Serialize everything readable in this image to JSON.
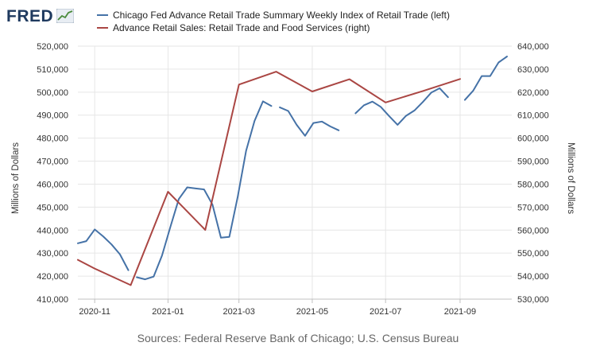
{
  "logo": {
    "text": "FRED",
    "icon": "trend-line-icon"
  },
  "source_text": "Sources: Federal Reserve Bank of Chicago; U.S. Census Bureau",
  "chart_data": {
    "type": "line",
    "title": "",
    "x_type": "date",
    "xlim": [
      "2020-10-18",
      "2021-10-14"
    ],
    "x_ticks": [
      "2020-11-01",
      "2021-01-01",
      "2021-03-01",
      "2021-05-01",
      "2021-07-01",
      "2021-09-01"
    ],
    "x_tick_labels": [
      "2020-11",
      "2021-01",
      "2021-03",
      "2021-05",
      "2021-07",
      "2021-09"
    ],
    "left_axis": {
      "label": "Millions of Dollars",
      "ylim": [
        410000,
        520000
      ],
      "ticks": [
        410000,
        420000,
        430000,
        440000,
        450000,
        460000,
        470000,
        480000,
        490000,
        500000,
        510000,
        520000
      ],
      "tick_labels": [
        "410,000",
        "420,000",
        "430,000",
        "440,000",
        "450,000",
        "460,000",
        "470,000",
        "480,000",
        "490,000",
        "500,000",
        "510,000",
        "520,000"
      ]
    },
    "right_axis": {
      "label": "Millions of Dollars",
      "ylim": [
        530000,
        640000
      ],
      "ticks": [
        530000,
        540000,
        550000,
        560000,
        570000,
        580000,
        590000,
        600000,
        610000,
        620000,
        630000,
        640000
      ],
      "tick_labels": [
        "530,000",
        "540,000",
        "550,000",
        "560,000",
        "570,000",
        "580,000",
        "590,000",
        "600,000",
        "610,000",
        "620,000",
        "630,000",
        "640,000"
      ]
    },
    "grid": true,
    "legend_position": "top",
    "series": [
      {
        "name": "Chicago Fed Advance Retail Trade Summary Weekly Index of Retail Trade (left)",
        "axis": "left",
        "color": "#4572a7",
        "points": [
          [
            "2020-10-18",
            434300
          ],
          [
            "2020-10-25",
            435200
          ],
          [
            "2020-11-01",
            440300
          ],
          [
            "2020-11-08",
            437300
          ],
          [
            "2020-11-15",
            433800
          ],
          [
            "2020-11-22",
            429500
          ],
          [
            "2020-11-29",
            422600
          ],
          null,
          [
            "2020-12-06",
            419500
          ],
          [
            "2020-12-13",
            418600
          ],
          [
            "2020-12-20",
            419800
          ],
          [
            "2020-12-27",
            429000
          ],
          [
            "2021-01-03",
            441500
          ],
          [
            "2021-01-10",
            453500
          ],
          [
            "2021-01-17",
            458600
          ],
          [
            "2021-01-24",
            458100
          ],
          [
            "2021-01-31",
            457700
          ],
          [
            "2021-02-07",
            451100
          ],
          [
            "2021-02-14",
            436700
          ],
          [
            "2021-02-21",
            437100
          ],
          [
            "2021-02-28",
            454600
          ],
          [
            "2021-03-07",
            474500
          ],
          [
            "2021-03-14",
            487500
          ],
          [
            "2021-03-21",
            496000
          ],
          [
            "2021-03-28",
            494000
          ],
          null,
          [
            "2021-04-04",
            493400
          ],
          [
            "2021-04-11",
            491800
          ],
          [
            "2021-04-18",
            485800
          ],
          [
            "2021-04-25",
            481000
          ],
          [
            "2021-05-02",
            486600
          ],
          [
            "2021-05-09",
            487200
          ],
          [
            "2021-05-16",
            485100
          ],
          [
            "2021-05-23",
            483400
          ],
          null,
          [
            "2021-06-06",
            490800
          ],
          [
            "2021-06-13",
            494300
          ],
          [
            "2021-06-20",
            495900
          ],
          [
            "2021-06-27",
            493600
          ],
          [
            "2021-07-04",
            489600
          ],
          [
            "2021-07-11",
            485800
          ],
          [
            "2021-07-18",
            489700
          ],
          [
            "2021-07-25",
            492000
          ],
          [
            "2021-08-01",
            495700
          ],
          [
            "2021-08-08",
            499800
          ],
          [
            "2021-08-15",
            501700
          ],
          [
            "2021-08-22",
            497800
          ],
          null,
          [
            "2021-09-05",
            496600
          ],
          [
            "2021-09-12",
            500700
          ],
          [
            "2021-09-19",
            507000
          ],
          [
            "2021-09-26",
            507000
          ],
          [
            "2021-10-03",
            512900
          ],
          [
            "2021-10-10",
            515500
          ]
        ]
      },
      {
        "name": "Advance Retail Sales: Retail Trade and Food Services (right)",
        "axis": "right",
        "color": "#aa4643",
        "points": [
          [
            "2020-10-18",
            547100
          ],
          [
            "2020-11-01",
            543300
          ],
          [
            "2020-12-01",
            536100
          ],
          [
            "2021-01-01",
            576700
          ],
          [
            "2021-02-01",
            560100
          ],
          [
            "2021-03-01",
            623300
          ],
          [
            "2021-04-01",
            628900
          ],
          [
            "2021-05-01",
            620300
          ],
          [
            "2021-06-01",
            625600
          ],
          [
            "2021-07-01",
            615500
          ],
          [
            "2021-08-01",
            620500
          ],
          [
            "2021-09-01",
            625700
          ]
        ]
      }
    ]
  }
}
